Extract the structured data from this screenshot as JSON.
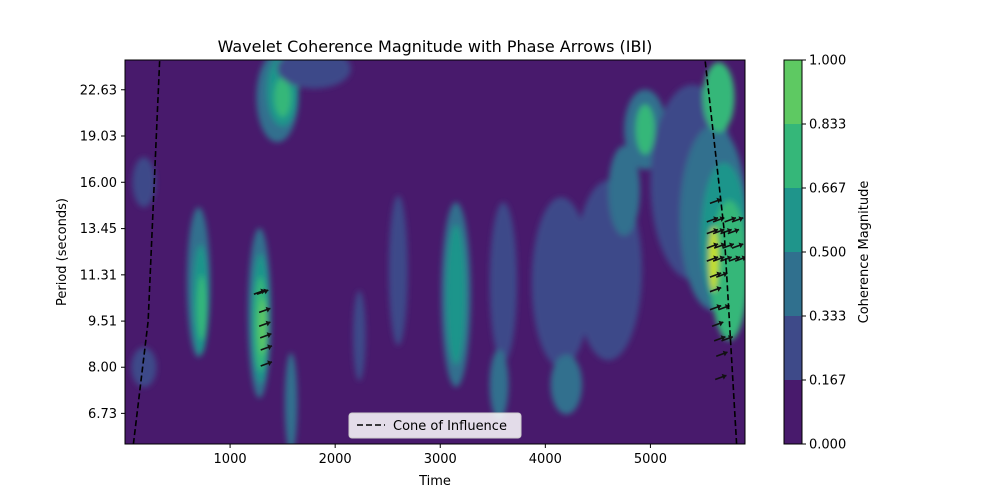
{
  "chart_data": {
    "type": "heatmap",
    "title": "Wavelet Coherence Magnitude with Phase Arrows (IBI)",
    "xlabel": "Time",
    "ylabel": "Period (seconds)",
    "x_range": [
      0,
      5900
    ],
    "x_ticks": [
      1000,
      2000,
      3000,
      4000,
      5000
    ],
    "y_scale": "log",
    "y_range": [
      6.0,
      25.3
    ],
    "y_ticks": [
      6.73,
      8.0,
      9.51,
      11.31,
      13.45,
      16.0,
      19.03,
      22.63
    ],
    "colorbar": {
      "label": "Coherence Magnitude",
      "levels": [
        0.0,
        0.167,
        0.333,
        0.5,
        0.667,
        0.833,
        1.0
      ],
      "tick_labels": [
        "0.000",
        "0.167",
        "0.333",
        "0.500",
        "0.667",
        "0.833",
        "1.000"
      ],
      "colors": [
        "#481a6c",
        "#3e4a89",
        "#30708e",
        "#1f958b",
        "#35b779",
        "#5ec962",
        "#c8e020"
      ]
    },
    "legend": {
      "location": "lower center",
      "entries": [
        {
          "label": "Cone of Influence",
          "style": "dashed",
          "color": "#000000"
        }
      ]
    },
    "cone_of_influence": {
      "left": [
        {
          "x": 80,
          "period": 6.0
        },
        {
          "x": 220,
          "period": 9.5
        },
        {
          "x": 330,
          "period": 25.3
        }
      ],
      "right": [
        {
          "x": 5820,
          "period": 6.0
        },
        {
          "x": 5700,
          "period": 13.45
        },
        {
          "x": 5520,
          "period": 25.3
        }
      ]
    },
    "regions": [
      {
        "x": 180,
        "period": 16.0,
        "rx": 110,
        "rpx": 50,
        "level": 1
      },
      {
        "x": 180,
        "period": 8.0,
        "rx": 120,
        "rpx": 40,
        "level": 1
      },
      {
        "x": 700,
        "period": 11.0,
        "rx": 110,
        "rpx": 150,
        "level": 2
      },
      {
        "x": 720,
        "period": 10.3,
        "rx": 75,
        "rpx": 110,
        "level": 3
      },
      {
        "x": 730,
        "period": 10.0,
        "rx": 45,
        "rpx": 65,
        "level": 4
      },
      {
        "x": 1280,
        "period": 9.8,
        "rx": 110,
        "rpx": 170,
        "level": 2
      },
      {
        "x": 1290,
        "period": 9.6,
        "rx": 80,
        "rpx": 130,
        "level": 3
      },
      {
        "x": 1290,
        "period": 9.4,
        "rx": 60,
        "rpx": 95,
        "level": 4
      },
      {
        "x": 1310,
        "period": 9.3,
        "rx": 35,
        "rpx": 55,
        "level": 5
      },
      {
        "x": 1450,
        "period": 22.0,
        "rx": 200,
        "rpx": 90,
        "level": 2
      },
      {
        "x": 1500,
        "period": 22.5,
        "rx": 150,
        "rpx": 70,
        "level": 3
      },
      {
        "x": 1500,
        "period": 22.0,
        "rx": 80,
        "rpx": 40,
        "level": 4
      },
      {
        "x": 1580,
        "period": 7.0,
        "rx": 60,
        "rpx": 100,
        "level": 2
      },
      {
        "x": 1800,
        "period": 24.5,
        "rx": 350,
        "rpx": 40,
        "level": 1
      },
      {
        "x": 2600,
        "period": 11.5,
        "rx": 90,
        "rpx": 150,
        "level": 1
      },
      {
        "x": 2230,
        "period": 9.0,
        "rx": 60,
        "rpx": 90,
        "level": 1
      },
      {
        "x": 3150,
        "period": 10.5,
        "rx": 140,
        "rpx": 185,
        "level": 2
      },
      {
        "x": 3150,
        "period": 10.5,
        "rx": 90,
        "rpx": 140,
        "level": 3
      },
      {
        "x": 3600,
        "period": 11.0,
        "rx": 130,
        "rpx": 160,
        "level": 1
      },
      {
        "x": 3560,
        "period": 7.5,
        "rx": 90,
        "rpx": 70,
        "level": 2
      },
      {
        "x": 4150,
        "period": 11.0,
        "rx": 280,
        "rpx": 170,
        "level": 1
      },
      {
        "x": 4200,
        "period": 7.5,
        "rx": 150,
        "rpx": 60,
        "level": 2
      },
      {
        "x": 4600,
        "period": 11.5,
        "rx": 320,
        "rpx": 180,
        "level": 1
      },
      {
        "x": 4750,
        "period": 15.5,
        "rx": 150,
        "rpx": 90,
        "level": 2
      },
      {
        "x": 4950,
        "period": 19.5,
        "rx": 200,
        "rpx": 80,
        "level": 2
      },
      {
        "x": 4950,
        "period": 19.5,
        "rx": 90,
        "rpx": 50,
        "level": 4
      },
      {
        "x": 5400,
        "period": 16.0,
        "rx": 400,
        "rpx": 195,
        "level": 1
      },
      {
        "x": 5600,
        "period": 14.0,
        "rx": 320,
        "rpx": 185,
        "level": 2
      },
      {
        "x": 5700,
        "period": 13.0,
        "rx": 220,
        "rpx": 150,
        "level": 3
      },
      {
        "x": 5750,
        "period": 11.5,
        "rx": 180,
        "rpx": 140,
        "level": 4
      },
      {
        "x": 5650,
        "period": 22.0,
        "rx": 150,
        "rpx": 70,
        "level": 4
      },
      {
        "x": 5600,
        "period": 12.0,
        "rx": 45,
        "rpx": 65,
        "level": 6
      }
    ],
    "phase_arrows": [
      {
        "x": 1280,
        "period": 10.6
      },
      {
        "x": 1310,
        "period": 10.6
      },
      {
        "x": 1330,
        "period": 9.9
      },
      {
        "x": 1330,
        "period": 9.4
      },
      {
        "x": 1340,
        "period": 9.0
      },
      {
        "x": 1345,
        "period": 8.6
      },
      {
        "x": 1345,
        "period": 8.1
      },
      {
        "x": 5620,
        "period": 14.9
      },
      {
        "x": 5590,
        "period": 13.9
      },
      {
        "x": 5650,
        "period": 13.9
      },
      {
        "x": 5760,
        "period": 13.9
      },
      {
        "x": 5830,
        "period": 13.9
      },
      {
        "x": 5590,
        "period": 13.3
      },
      {
        "x": 5650,
        "period": 13.3
      },
      {
        "x": 5720,
        "period": 13.3
      },
      {
        "x": 5790,
        "period": 13.3
      },
      {
        "x": 5590,
        "period": 12.6
      },
      {
        "x": 5660,
        "period": 12.6
      },
      {
        "x": 5740,
        "period": 12.6
      },
      {
        "x": 5830,
        "period": 12.6
      },
      {
        "x": 5590,
        "period": 12.0
      },
      {
        "x": 5650,
        "period": 12.0
      },
      {
        "x": 5720,
        "period": 12.0
      },
      {
        "x": 5800,
        "period": 12.0
      },
      {
        "x": 5860,
        "period": 12.0
      },
      {
        "x": 5620,
        "period": 11.3
      },
      {
        "x": 5680,
        "period": 11.3
      },
      {
        "x": 5620,
        "period": 10.7
      },
      {
        "x": 5620,
        "period": 10.0
      },
      {
        "x": 5700,
        "period": 10.0
      },
      {
        "x": 5640,
        "period": 9.4
      },
      {
        "x": 5660,
        "period": 8.9
      },
      {
        "x": 5730,
        "period": 8.9
      },
      {
        "x": 5680,
        "period": 8.4
      },
      {
        "x": 5670,
        "period": 7.7
      }
    ]
  }
}
